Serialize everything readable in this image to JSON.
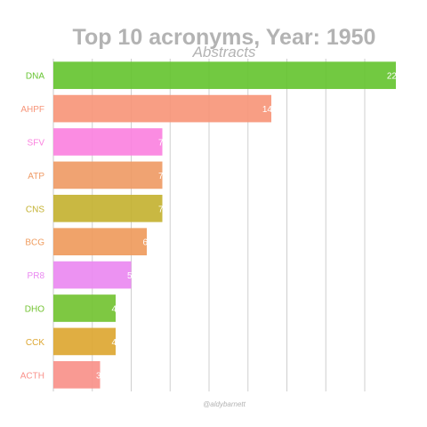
{
  "chart_data": {
    "type": "bar",
    "orientation": "horizontal",
    "title": "Top 10 acronyms, Year: 1950",
    "subtitle": "Abstracts",
    "caption": "@aldybarnett",
    "categories": [
      "DNA",
      "AHPF",
      "SFV",
      "ATP",
      "CNS",
      "BCG",
      "PR8",
      "DHO",
      "CCK",
      "ACTH"
    ],
    "values": [
      22,
      14,
      7,
      7,
      7,
      6,
      5,
      4,
      4,
      3
    ],
    "value_labels": [
      "22",
      "14",
      "7",
      "7",
      "7",
      "6",
      "5",
      "4",
      "4",
      "3"
    ],
    "colors": [
      "#66c431",
      "#f7967a",
      "#fb82df",
      "#ef9b66",
      "#c4b232",
      "#ef9b5d",
      "#ea89f1",
      "#73c332",
      "#dda732",
      "#f9918a"
    ],
    "xlim": [
      0,
      22
    ],
    "grid": true,
    "gridlines": [
      0,
      2.5,
      5,
      7.5,
      10,
      12.5,
      15,
      17.5,
      20
    ]
  }
}
